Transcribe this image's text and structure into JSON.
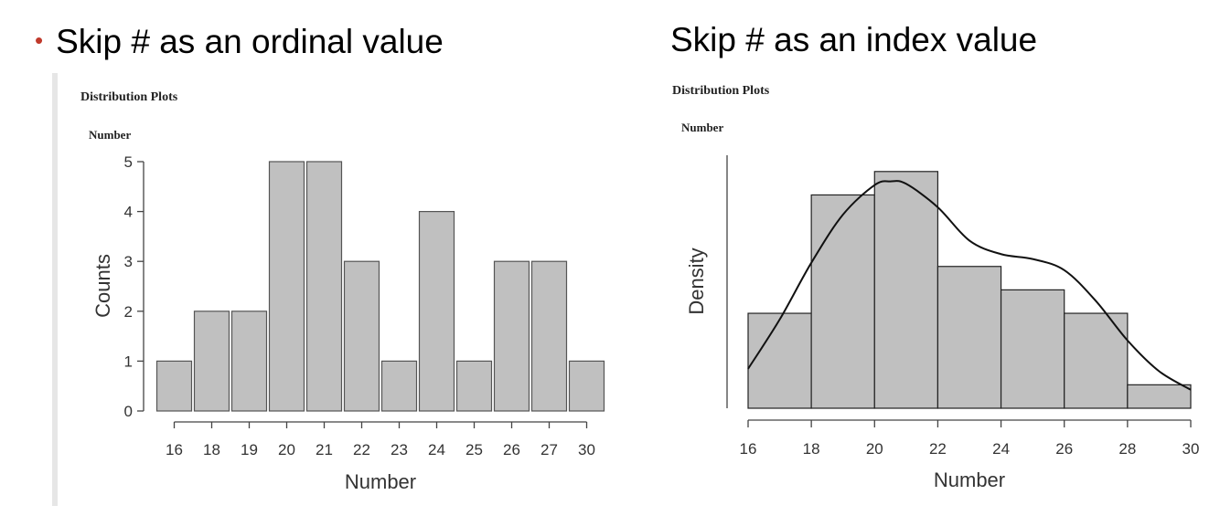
{
  "slide": {
    "left_heading": "Skip # as an ordinal value",
    "right_heading": "Skip # as an index value",
    "bullet": "•"
  },
  "chart_data": [
    {
      "type": "bar",
      "title": "Distribution Plots",
      "subtitle": "Number",
      "categories": [
        "16",
        "18",
        "19",
        "20",
        "21",
        "22",
        "23",
        "24",
        "25",
        "26",
        "27",
        "30"
      ],
      "values": [
        1,
        2,
        2,
        5,
        5,
        3,
        1,
        4,
        1,
        3,
        3,
        1
      ],
      "xlabel": "Number",
      "ylabel": "Counts",
      "ylim": [
        0,
        5
      ],
      "yticks": [
        0,
        1,
        2,
        3,
        4,
        5
      ],
      "colors": {
        "bar_fill": "#c0c0c0",
        "bar_stroke": "#555555"
      },
      "grid": false
    },
    {
      "type": "bar",
      "title": "Distribution Plots",
      "subtitle": "Number",
      "bins": [
        [
          16,
          18
        ],
        [
          18,
          20
        ],
        [
          20,
          22
        ],
        [
          22,
          24
        ],
        [
          24,
          26
        ],
        [
          26,
          28
        ],
        [
          28,
          30
        ]
      ],
      "values": [
        0.077,
        0.173,
        0.192,
        0.115,
        0.096,
        0.077,
        0.019
      ],
      "xticks": [
        16,
        18,
        20,
        22,
        24,
        26,
        28,
        30
      ],
      "xlim": [
        16,
        30
      ],
      "ylim": [
        0,
        0.2
      ],
      "xlabel": "Number",
      "ylabel": "Density",
      "density_curve": {
        "x": [
          16,
          17,
          18,
          19,
          20,
          20.5,
          21,
          22,
          23,
          24,
          25,
          26,
          27,
          28,
          29,
          30
        ],
        "y": [
          0.032,
          0.072,
          0.118,
          0.157,
          0.181,
          0.184,
          0.182,
          0.163,
          0.136,
          0.125,
          0.121,
          0.112,
          0.087,
          0.055,
          0.03,
          0.015
        ]
      },
      "colors": {
        "bar_fill": "#c0c0c0",
        "bar_stroke": "#222222",
        "curve": "#111111"
      },
      "grid": false
    }
  ]
}
